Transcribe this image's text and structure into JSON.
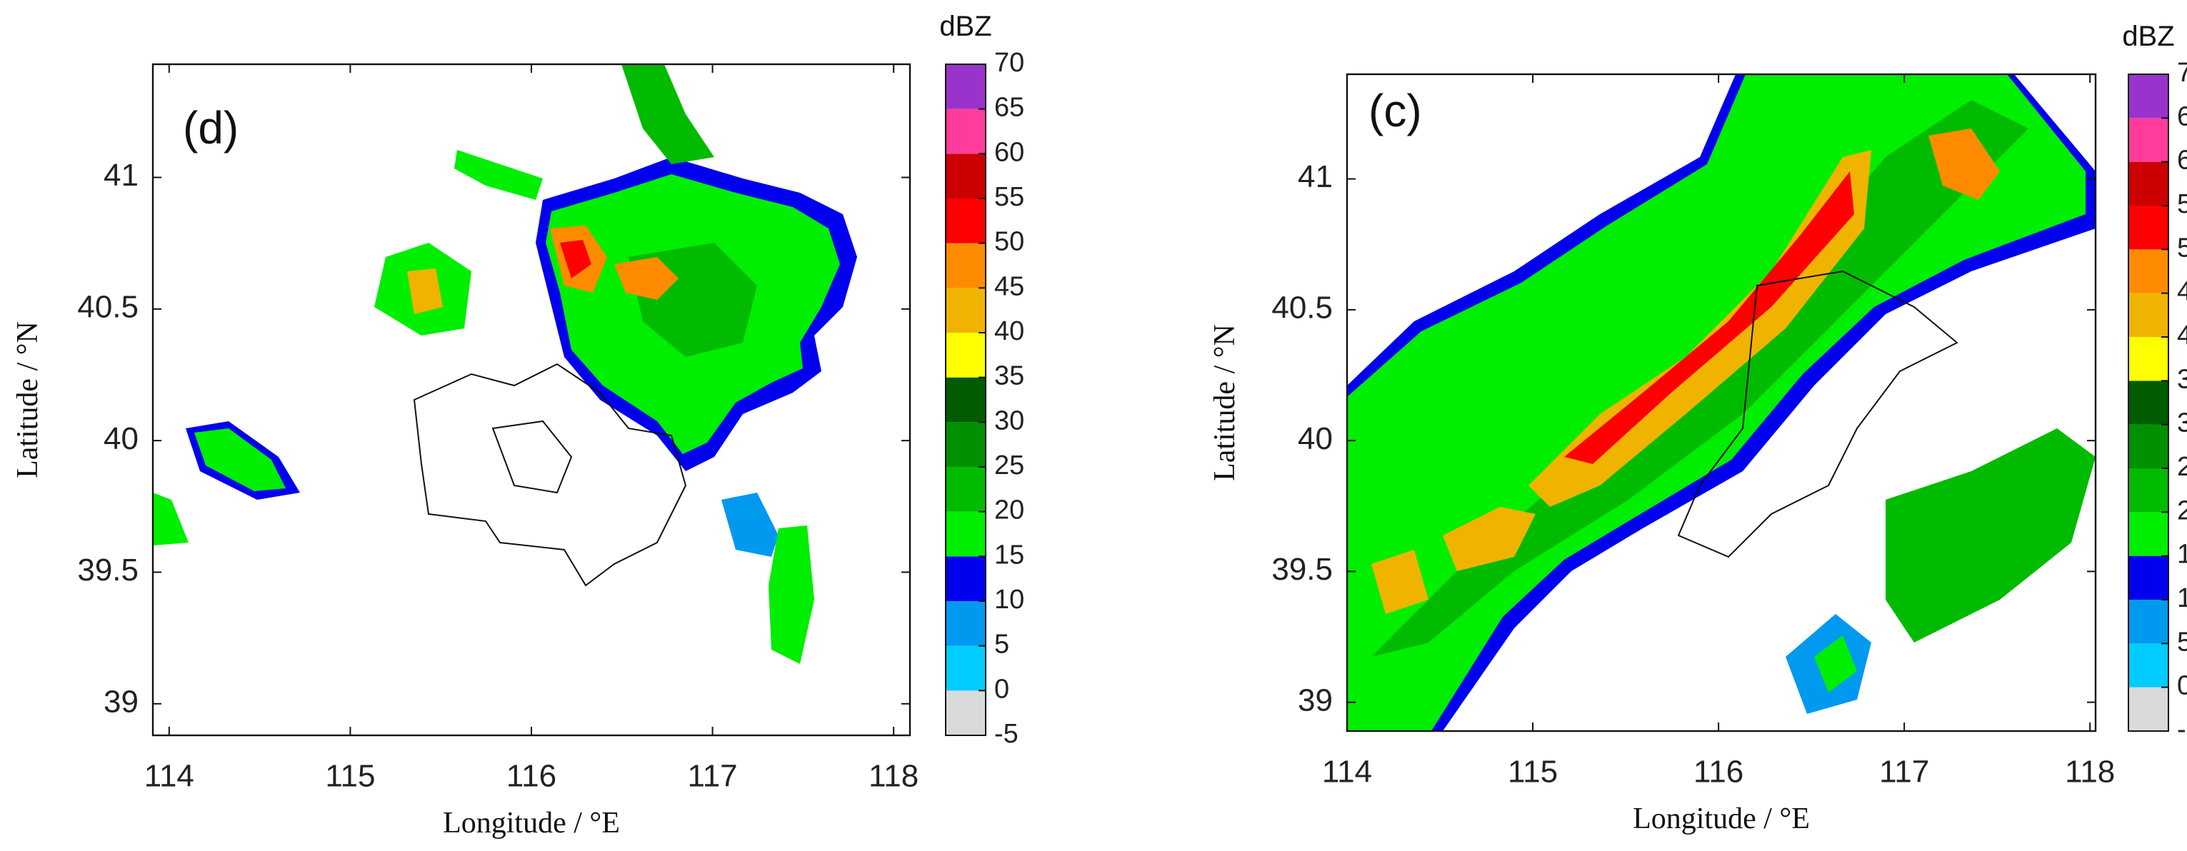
{
  "colorbar": {
    "title": "dBZ",
    "ticks": [
      -5,
      0,
      5,
      10,
      15,
      20,
      25,
      30,
      35,
      40,
      45,
      50,
      55,
      60,
      65,
      70
    ],
    "colors": [
      "#d9d9d9",
      "#00ccff",
      "#0099f0",
      "#0000ee",
      "#00ee00",
      "#00bb00",
      "#009000",
      "#005c00",
      "#ffff00",
      "#f0b400",
      "#ff8c00",
      "#ff0000",
      "#cc0000",
      "#ff3c9c",
      "#9933cc"
    ]
  },
  "panels": [
    {
      "label": "(d)",
      "x_axis_label": "Longitude / °E",
      "y_axis_label": "Latitude / °N",
      "xlim": [
        113.91,
        118.09
      ],
      "ylim": [
        38.88,
        41.43
      ],
      "xticks": [
        114,
        115,
        116,
        117,
        118
      ],
      "yticks": [
        39,
        39.5,
        40,
        40.5,
        41
      ]
    },
    {
      "label": "(c)",
      "x_axis_label": "Longitude / °E",
      "y_axis_label": "Latitude / °N",
      "xlim": [
        114,
        118.03
      ],
      "ylim": [
        38.89,
        41.4
      ],
      "xticks": [
        114,
        115,
        116,
        117,
        118
      ],
      "yticks": [
        39,
        39.5,
        40,
        40.5,
        41
      ]
    }
  ]
}
